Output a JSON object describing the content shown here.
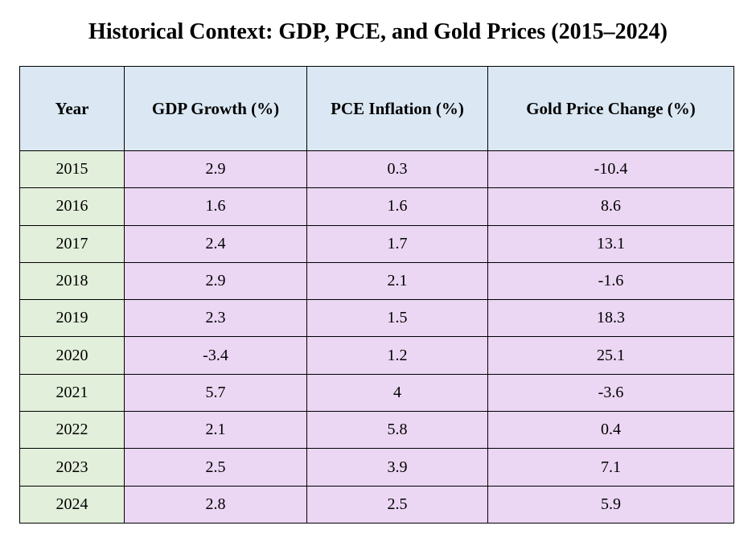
{
  "title": "Historical Context: GDP, PCE, and Gold Prices (2015–2024)",
  "colors": {
    "header_bg": "#dbe8f4",
    "year_bg": "#e2efda",
    "value_bg": "#ebd6f3",
    "border": "#000000"
  },
  "chart_data": {
    "type": "table",
    "title": "Historical Context: GDP, PCE, and Gold Prices (2015–2024)",
    "columns": [
      "Year",
      "GDP Growth (%)",
      "PCE Inflation (%)",
      "Gold Price Change (%)"
    ],
    "rows": [
      [
        "2015",
        "2.9",
        "0.3",
        "-10.4"
      ],
      [
        "2016",
        "1.6",
        "1.6",
        "8.6"
      ],
      [
        "2017",
        "2.4",
        "1.7",
        "13.1"
      ],
      [
        "2018",
        "2.9",
        "2.1",
        "-1.6"
      ],
      [
        "2019",
        "2.3",
        "1.5",
        "18.3"
      ],
      [
        "2020",
        "-3.4",
        "1.2",
        "25.1"
      ],
      [
        "2021",
        "5.7",
        "4",
        "-3.6"
      ],
      [
        "2022",
        "2.1",
        "5.8",
        "0.4"
      ],
      [
        "2023",
        "2.5",
        "3.9",
        "7.1"
      ],
      [
        "2024",
        "2.8",
        "2.5",
        "5.9"
      ]
    ]
  }
}
